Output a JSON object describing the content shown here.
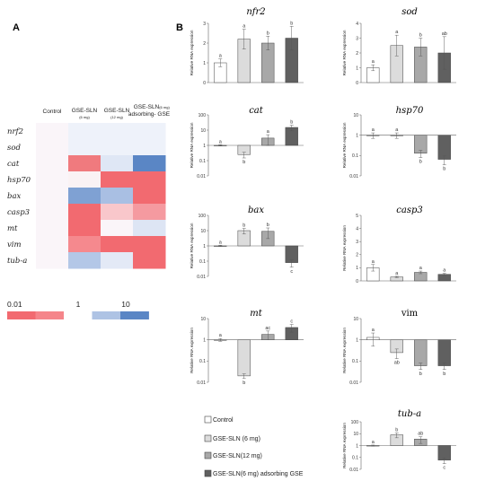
{
  "panels": {
    "a": "A",
    "b": "B"
  },
  "heatmap": {
    "columns": [
      {
        "main": "Control",
        "sub": ""
      },
      {
        "main": "GSE-SLN",
        "sub": "(6 mg)"
      },
      {
        "main": "GSE-SLN",
        "sub": "(12 mg)"
      },
      {
        "main": "GSE-SLN",
        "sub": "(6 mg)",
        "tail": "adsorbing- GSE"
      }
    ],
    "rows": [
      "nrf2",
      "sod",
      "cat",
      "hsp70",
      "bax",
      "casp3",
      "mt",
      "vim",
      "tub-a"
    ],
    "cell_colors": [
      [
        "#faf5f9",
        "#eef2fa",
        "#eef2fa",
        "#eef2fa"
      ],
      [
        "#faf5f9",
        "#eef2fa",
        "#eef2fa",
        "#eef2fa"
      ],
      [
        "#faf5f9",
        "#f07a7e",
        "#dfe7f5",
        "#5a86c5"
      ],
      [
        "#faf5f9",
        "#faf2f4",
        "#f26a70",
        "#f26a70"
      ],
      [
        "#faf5f9",
        "#7fa1d3",
        "#a9bfe3",
        "#f26a70"
      ],
      [
        "#faf5f9",
        "#f26a70",
        "#f9c7cb",
        "#f59aa0"
      ],
      [
        "#faf5f9",
        "#f26a70",
        "#faf5f9",
        "#dde5f4"
      ],
      [
        "#faf5f9",
        "#f5898e",
        "#f26a70",
        "#f26a70"
      ],
      [
        "#faf5f9",
        "#b3c7e7",
        "#e3e9f6",
        "#f26a70"
      ]
    ],
    "scale": {
      "labels": [
        "0.01",
        "1",
        "10"
      ],
      "colors": [
        "#f26a70",
        "#f5858a",
        "#ffffff",
        "#aec3e4",
        "#5a86c5"
      ]
    }
  },
  "legend": {
    "items": [
      {
        "label": "Control",
        "color": "#ffffff"
      },
      {
        "label": "GSE-SLN (6 mg)",
        "color": "#dcdcdc"
      },
      {
        "label": "GSE-SLN(12 mg)",
        "color": "#a8a8a8"
      },
      {
        "label": "GSE-SLN(6 mg) adsorbing GSE",
        "color": "#606060"
      }
    ]
  },
  "chart_data": [
    {
      "type": "bar",
      "title": "nfr2",
      "scale": "linear",
      "ylabel": "Relative RNA expression",
      "categories": [
        "Control",
        "GSE-SLN (6 mg)",
        "GSE-SLN(12 mg)",
        "GSE-SLN(6 mg) adsorbing GSE"
      ],
      "ylim": [
        0,
        3
      ],
      "yticks": [
        "0",
        "1",
        "2",
        "3"
      ],
      "values": [
        1.0,
        2.2,
        2.0,
        2.25
      ],
      "errors": [
        0.2,
        0.5,
        0.35,
        0.6
      ],
      "letters": [
        "a",
        "a",
        "b",
        "b"
      ]
    },
    {
      "type": "bar",
      "title": "sod",
      "scale": "linear",
      "ylabel": "Relative RNA expression",
      "categories": [
        "Control",
        "GSE-SLN (6 mg)",
        "GSE-SLN(12 mg)",
        "GSE-SLN(6 mg) adsorbing GSE"
      ],
      "ylim": [
        0,
        4
      ],
      "yticks": [
        "0",
        "1",
        "2",
        "3",
        "4"
      ],
      "values": [
        1.0,
        2.5,
        2.4,
        2.0
      ],
      "errors": [
        0.2,
        0.7,
        0.6,
        1.1
      ],
      "letters": [
        "a",
        "a",
        "b",
        "ab"
      ]
    },
    {
      "type": "bar",
      "title": "cat",
      "scale": "log",
      "ylabel": "Relative RNA expression",
      "categories": [
        "Control",
        "GSE-SLN (6 mg)",
        "GSE-SLN(12 mg)",
        "GSE-SLN(6 mg) adsorbing GSE"
      ],
      "ylim": [
        0.01,
        100
      ],
      "yticks": [
        "0.01",
        "0.1",
        "1",
        "10",
        "100"
      ],
      "values": [
        1.0,
        0.25,
        3.0,
        15.0
      ],
      "errors": [
        0.1,
        0.1,
        2.0,
        6.0
      ],
      "letters": [
        "a",
        "b",
        "a",
        "b"
      ]
    },
    {
      "type": "bar",
      "title": "hsp70",
      "scale": "log",
      "ylabel": "Relative RNA expression",
      "categories": [
        "Control",
        "GSE-SLN (6 mg)",
        "GSE-SLN(12 mg)",
        "GSE-SLN(6 mg) adsorbing GSE"
      ],
      "ylim": [
        0.01,
        10
      ],
      "yticks": [
        "0.01",
        "0.1",
        "1",
        "10"
      ],
      "values": [
        1.0,
        1.0,
        0.13,
        0.065
      ],
      "errors": [
        0.3,
        0.3,
        0.05,
        0.03
      ],
      "letters": [
        "a",
        "a",
        "b",
        "b"
      ]
    },
    {
      "type": "bar",
      "title": "bax",
      "scale": "log",
      "ylabel": "Relative RNA expression",
      "categories": [
        "Control",
        "GSE-SLN (6 mg)",
        "GSE-SLN(12 mg)",
        "GSE-SLN(6 mg) adsorbing GSE"
      ],
      "ylim": [
        0.01,
        100
      ],
      "yticks": [
        "0.01",
        "0.1",
        "1",
        "10",
        "100"
      ],
      "values": [
        1.0,
        10.0,
        9.0,
        0.08
      ],
      "errors": [
        0.1,
        4.0,
        6.0,
        0.04
      ],
      "letters": [
        "a",
        "b",
        "b",
        "c"
      ]
    },
    {
      "type": "bar",
      "title": "casp3",
      "scale": "linear",
      "ylabel": "Relative RNA expression",
      "categories": [
        "Control",
        "GSE-SLN (6 mg)",
        "GSE-SLN(12 mg)",
        "GSE-SLN(6 mg) adsorbing GSE"
      ],
      "ylim": [
        0,
        5
      ],
      "yticks": [
        "0",
        "1",
        "2",
        "3",
        "4",
        "5"
      ],
      "values": [
        1.0,
        0.3,
        0.65,
        0.5
      ],
      "errors": [
        0.25,
        0.05,
        0.1,
        0.08
      ],
      "letters": [
        "a",
        "a",
        "a",
        "a"
      ]
    },
    {
      "type": "bar",
      "title": "mt",
      "scale": "log",
      "ylabel": "Relative RNA expression",
      "categories": [
        "Control",
        "GSE-SLN (6 mg)",
        "GSE-SLN(12 mg)",
        "GSE-SLN(6 mg) adsorbing GSE"
      ],
      "ylim": [
        0.01,
        10
      ],
      "yticks": [
        "0.01",
        "0.1",
        "1",
        "10"
      ],
      "values": [
        1.0,
        0.02,
        1.8,
        3.8
      ],
      "errors": [
        0.15,
        0.005,
        0.8,
        1.5
      ],
      "letters": [
        "a",
        "b",
        "ac",
        "c"
      ]
    },
    {
      "type": "bar",
      "title": "vim",
      "scale": "log",
      "upright": true,
      "ylabel": "Relative RNA expression",
      "categories": [
        "Control",
        "GSE-SLN (6 mg)",
        "GSE-SLN(12 mg)",
        "GSE-SLN(6 mg) adsorbing GSE"
      ],
      "ylim": [
        0.01,
        10
      ],
      "yticks": [
        "0.01",
        "0.1",
        "1",
        "10"
      ],
      "values": [
        1.3,
        0.25,
        0.06,
        0.06
      ],
      "errors": [
        0.8,
        0.12,
        0.02,
        0.02
      ],
      "letters": [
        "a",
        "ab",
        "b",
        "b"
      ]
    },
    {
      "type": "bar",
      "title": "tub-a",
      "scale": "log",
      "ylabel": "Relative RNA expression",
      "categories": [
        "Control",
        "GSE-SLN (6 mg)",
        "GSE-SLN(12 mg)",
        "GSE-SLN(6 mg) adsorbing GSE"
      ],
      "ylim": [
        0.01,
        100
      ],
      "yticks": [
        "0.01",
        "0.1",
        "1",
        "10",
        "100"
      ],
      "values": [
        1.0,
        8.0,
        3.5,
        0.06
      ],
      "errors": [
        0.1,
        3.5,
        2.0,
        0.03
      ],
      "letters": [
        "a",
        "b",
        "ab",
        "c"
      ]
    }
  ]
}
